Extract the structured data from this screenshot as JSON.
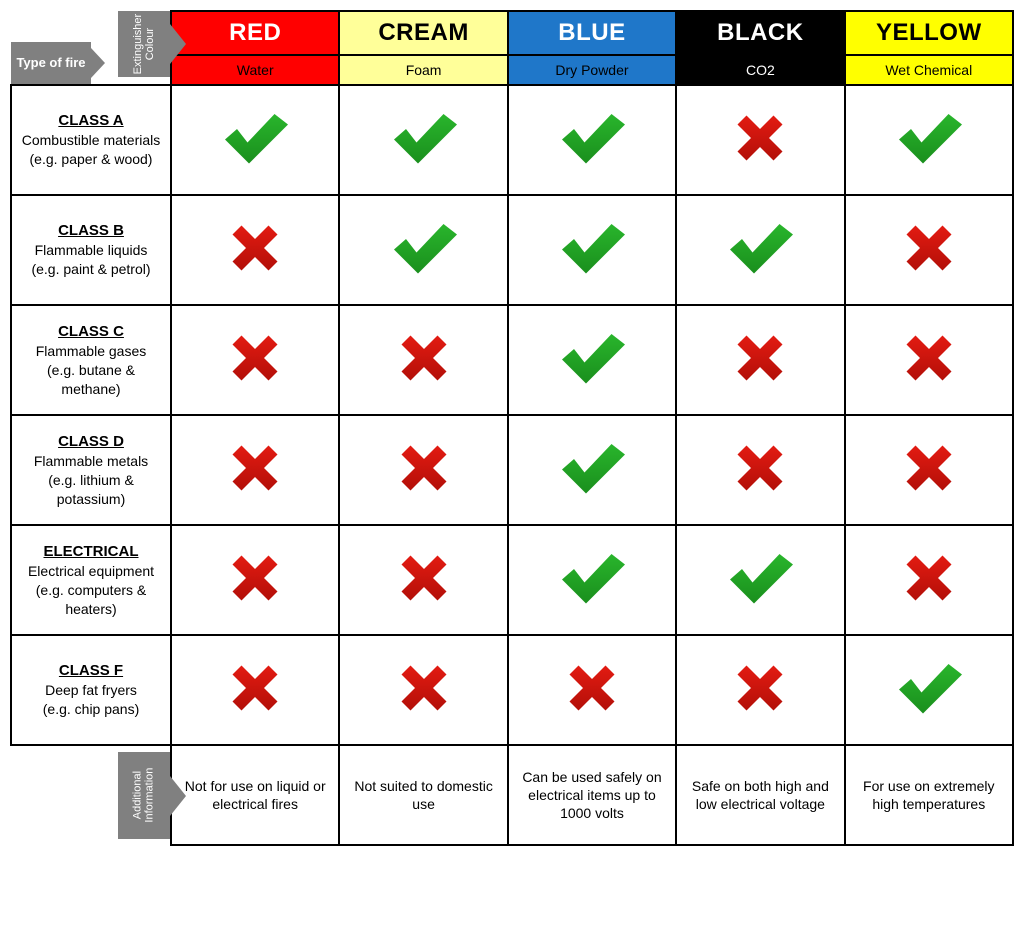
{
  "labels": {
    "extinguisher_colour": "Extinguisher Colour",
    "type_of_fire": "Type of fire",
    "additional_information": "Additional Information"
  },
  "columns": [
    {
      "name": "RED",
      "sub": "Water",
      "bg": "#ff0000",
      "fg": "#ffffff",
      "sub_bg": "#ff0000",
      "sub_fg": "#000000"
    },
    {
      "name": "CREAM",
      "sub": "Foam",
      "bg": "#ffff99",
      "fg": "#000000",
      "sub_bg": "#ffff99",
      "sub_fg": "#000000"
    },
    {
      "name": "BLUE",
      "sub": "Dry Powder",
      "bg": "#1f77c9",
      "fg": "#ffffff",
      "sub_bg": "#1f77c9",
      "sub_fg": "#000000"
    },
    {
      "name": "BLACK",
      "sub": "CO2",
      "bg": "#000000",
      "fg": "#ffffff",
      "sub_bg": "#000000",
      "sub_fg": "#ffffff"
    },
    {
      "name": "YELLOW",
      "sub": "Wet Chemical",
      "bg": "#ffff00",
      "fg": "#000000",
      "sub_bg": "#ffff00",
      "sub_fg": "#000000"
    }
  ],
  "rows": [
    {
      "class": "CLASS A",
      "desc": "Combustible materials",
      "eg": "(e.g. paper & wood)"
    },
    {
      "class": "CLASS B",
      "desc": "Flammable liquids",
      "eg": "(e.g. paint & petrol)"
    },
    {
      "class": "CLASS C",
      "desc": "Flammable gases",
      "eg": "(e.g. butane & methane)"
    },
    {
      "class": "CLASS D",
      "desc": "Flammable metals",
      "eg": "(e.g. lithium & potassium)"
    },
    {
      "class": "ELECTRICAL",
      "desc": "Electrical equipment",
      "eg": "(e.g. computers & heaters)"
    },
    {
      "class": "CLASS F",
      "desc": "Deep fat fryers",
      "eg": "(e.g. chip pans)"
    }
  ],
  "grid": [
    [
      true,
      true,
      true,
      false,
      true
    ],
    [
      false,
      true,
      true,
      true,
      false
    ],
    [
      false,
      false,
      true,
      false,
      false
    ],
    [
      false,
      false,
      true,
      false,
      false
    ],
    [
      false,
      false,
      true,
      true,
      false
    ],
    [
      false,
      false,
      false,
      false,
      true
    ]
  ],
  "footers": [
    "Not for use on liquid or electrical fires",
    "Not suited to domestic use",
    "Can be used safely on electrical items up to 1000 volts",
    "Safe on both high and low electrical voltage",
    "For use on extremely high temperatures"
  ],
  "icons": {
    "check_fill": "#29b52c",
    "check_dark": "#1a8f1d",
    "cross_fill": "#e31b12",
    "cross_dark": "#b30f08"
  }
}
